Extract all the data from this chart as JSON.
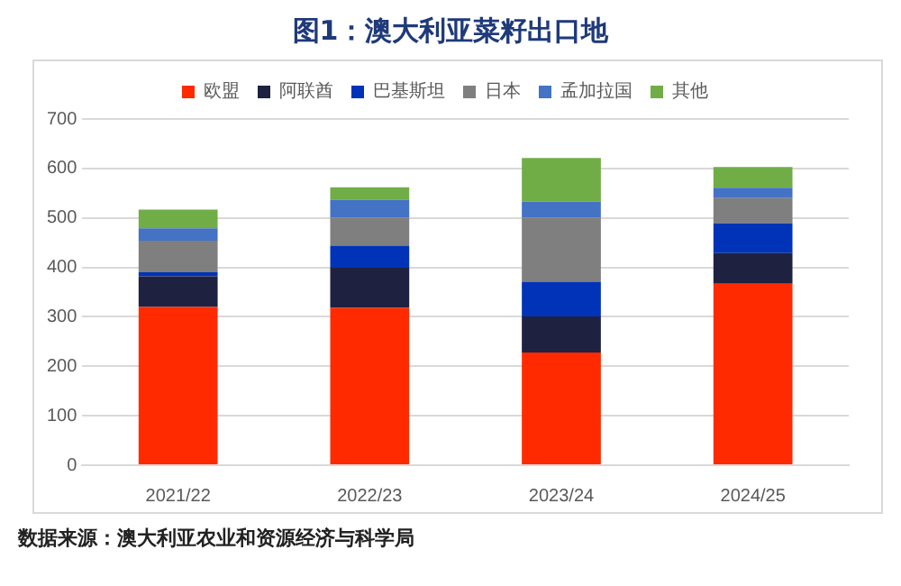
{
  "chart_data": {
    "type": "bar",
    "title": "图1：澳大利亚菜籽出口地",
    "categories": [
      "2021/22",
      "2022/23",
      "2023/24",
      "2024/25"
    ],
    "stacked": true,
    "series": [
      {
        "name": "欧盟",
        "color": "#ff2a00",
        "values": [
          320,
          318,
          228,
          367
        ]
      },
      {
        "name": "阿联酋",
        "color": "#1f2140",
        "values": [
          62,
          81,
          73,
          62
        ]
      },
      {
        "name": "巴基斯坦",
        "color": "#0033b8",
        "values": [
          8,
          45,
          70,
          60
        ]
      },
      {
        "name": "日本",
        "color": "#7f7f7f",
        "values": [
          64,
          57,
          130,
          51
        ]
      },
      {
        "name": "孟加拉国",
        "color": "#4472c4",
        "values": [
          25,
          36,
          32,
          21
        ]
      },
      {
        "name": "其他",
        "color": "#70ad47",
        "values": [
          38,
          25,
          88,
          42
        ]
      }
    ],
    "ylim": [
      0,
      700
    ],
    "yticks": [
      0,
      100,
      200,
      300,
      400,
      500,
      600,
      700
    ],
    "grid": "y",
    "legend": "top",
    "annotations": [
      "数据来源：澳大利亚农业和资源经济与科学局"
    ]
  }
}
